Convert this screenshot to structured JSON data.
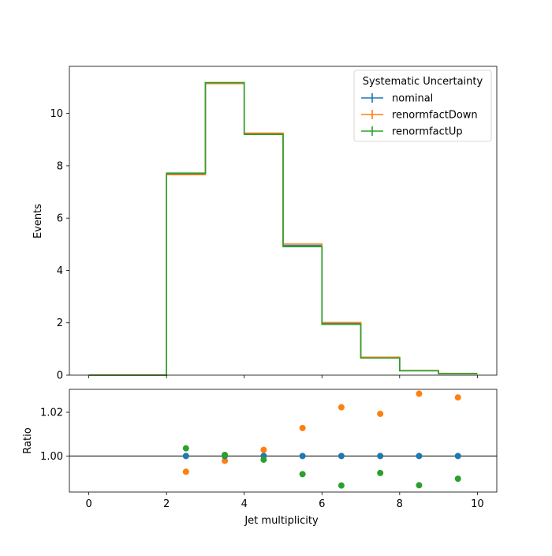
{
  "colors": {
    "nominal": "#1f77b4",
    "renormfactDown": "#ff7f0e",
    "renormfactUp": "#2ca02c"
  },
  "chart_data": [
    {
      "type": "line",
      "subtype": "step-histogram",
      "ylabel": "Events",
      "xlim": [
        -0.5,
        10.5
      ],
      "ylim": [
        0,
        11.8
      ],
      "bin_edges": [
        0,
        1,
        2,
        3,
        4,
        5,
        6,
        7,
        8,
        9,
        10
      ],
      "yticks": [
        0,
        2,
        4,
        6,
        8,
        10
      ],
      "legend": {
        "title": "Systematic Uncertainty",
        "position": "top-right"
      },
      "series": [
        {
          "name": "nominal",
          "values": [
            0,
            0,
            7.7,
            11.17,
            9.22,
            4.95,
            1.97,
            0.67,
            0.17,
            0.06
          ]
        },
        {
          "name": "renormfactDown",
          "values": [
            0,
            0,
            7.66,
            11.14,
            9.25,
            5.01,
            2.01,
            0.685,
            0.175,
            0.062
          ]
        },
        {
          "name": "renormfactUp",
          "values": [
            0,
            0,
            7.72,
            11.18,
            9.2,
            4.91,
            1.94,
            0.655,
            0.168,
            0.059
          ]
        }
      ]
    },
    {
      "type": "scatter",
      "xlabel": "Jet multiplicity",
      "ylabel": "Ratio",
      "xlim": [
        -0.5,
        10.5
      ],
      "ylim": [
        0.9835,
        1.0305
      ],
      "xticks": [
        0,
        2,
        4,
        6,
        8,
        10
      ],
      "yticks": [
        1.0,
        1.02
      ],
      "ytick_labels": [
        "1.00",
        "1.02"
      ],
      "reference_line": 1.0,
      "x": [
        2.5,
        3.5,
        4.5,
        5.5,
        6.5,
        7.5,
        8.5,
        9.5
      ],
      "series": [
        {
          "name": "nominal",
          "values": [
            1.0,
            1.0,
            1.0,
            1.0,
            1.0,
            1.0,
            1.0,
            1.0
          ]
        },
        {
          "name": "renormfactDown",
          "values": [
            0.9928,
            0.9978,
            1.0028,
            1.0128,
            1.0223,
            1.0193,
            1.0285,
            1.0268
          ]
        },
        {
          "name": "renormfactUp",
          "values": [
            1.0035,
            1.0005,
            0.9983,
            0.9917,
            0.9865,
            0.9922,
            0.9866,
            0.9896
          ]
        }
      ]
    }
  ]
}
